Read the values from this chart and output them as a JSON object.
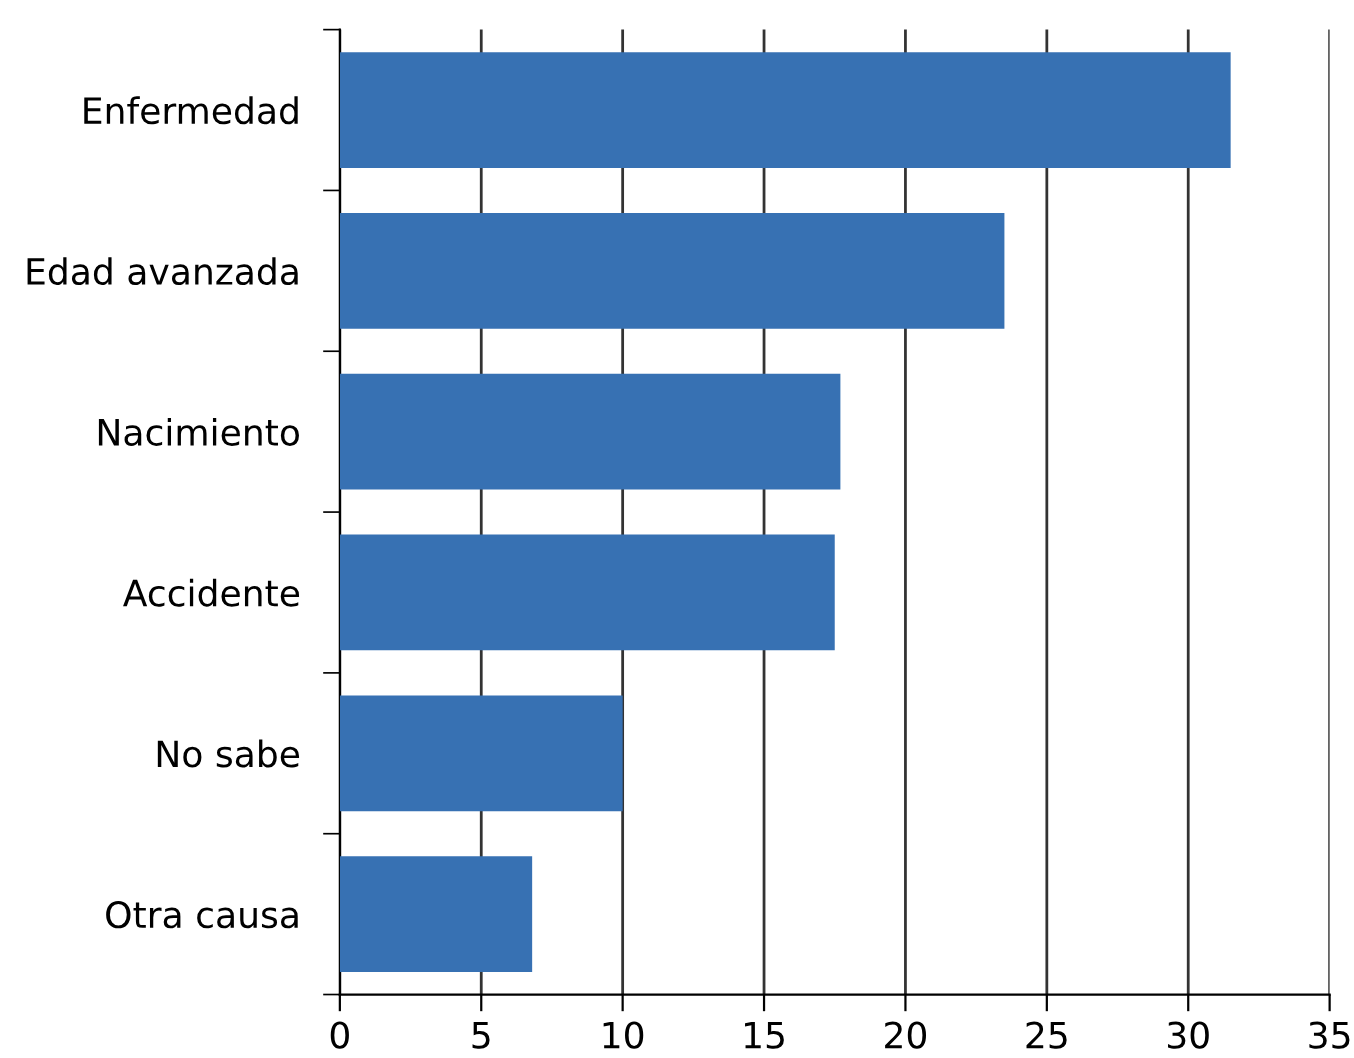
{
  "chart_data": {
    "type": "bar",
    "orientation": "horizontal",
    "categories": [
      "Enfermedad",
      "Edad avanzada",
      "Nacimiento",
      "Accidente",
      "No sabe",
      "Otra causa"
    ],
    "values": [
      31.5,
      23.5,
      17.7,
      17.5,
      10.0,
      6.8
    ],
    "color": "#3771b3",
    "xlim": [
      0,
      35
    ],
    "xticks": [
      0,
      5,
      10,
      15,
      20,
      25,
      30,
      35
    ],
    "grid": "x"
  }
}
